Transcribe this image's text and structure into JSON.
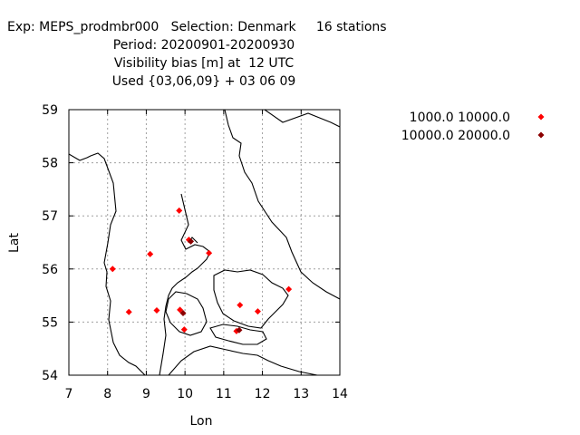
{
  "title": {
    "line1": "Exp: MEPS_prodmbr000   Selection: Denmark     16 stations",
    "line2": "Period: 20200901-20200930",
    "line3": "Visibility bias [m] at  12 UTC",
    "line4": "Used {03,06,09} + 03 06 09"
  },
  "chart_data": {
    "type": "scatter",
    "xlabel": "Lon",
    "ylabel": "Lat",
    "xlim": [
      7,
      14
    ],
    "ylim": [
      54,
      59
    ],
    "xticks": [
      "7",
      "8",
      "9",
      "10",
      "11",
      "12",
      "13",
      "14"
    ],
    "yticks": [
      "54",
      "55",
      "56",
      "57",
      "58",
      "59"
    ],
    "grid": true,
    "legend_position": "top-right",
    "series": [
      {
        "name": "1000.0 10000.0",
        "color": "#ff0000",
        "points": [
          [
            8.13,
            56.0
          ],
          [
            9.1,
            56.28
          ],
          [
            9.85,
            57.1
          ],
          [
            10.1,
            56.55
          ],
          [
            10.62,
            56.3
          ],
          [
            8.55,
            55.19
          ],
          [
            9.27,
            55.22
          ],
          [
            9.87,
            55.23
          ],
          [
            9.98,
            54.86
          ],
          [
            11.42,
            55.32
          ],
          [
            11.88,
            55.2
          ],
          [
            12.68,
            55.62
          ],
          [
            11.33,
            54.83
          ]
        ]
      },
      {
        "name": "10000.0 20000.0",
        "color": "#8b0000",
        "points": [
          [
            10.15,
            56.52
          ],
          [
            9.95,
            55.17
          ],
          [
            11.4,
            54.85
          ]
        ]
      }
    ]
  }
}
